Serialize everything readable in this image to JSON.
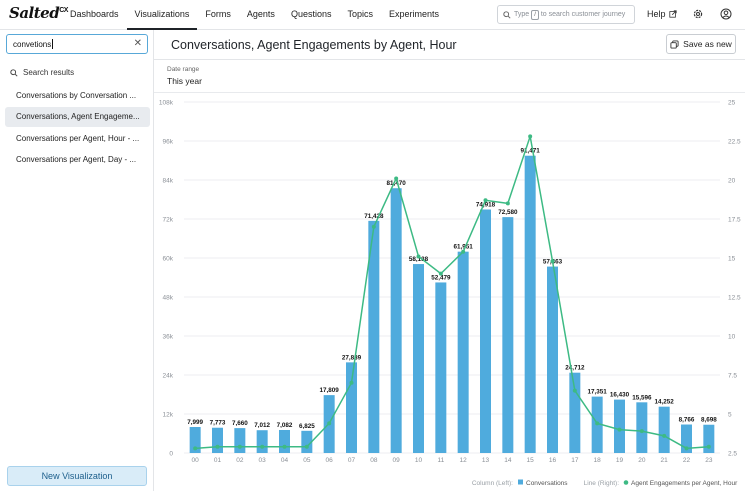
{
  "app": {
    "logo": "Salted",
    "logo_sup": "CX"
  },
  "nav": [
    "Dashboards",
    "Visualizations",
    "Forms",
    "Agents",
    "Questions",
    "Topics",
    "Experiments"
  ],
  "top_search": {
    "pre": "Type",
    "key": "/",
    "post": "to search customer journey"
  },
  "help_label": "Help",
  "sidebar": {
    "search_value": "convetions",
    "results_heading": "Search results",
    "results": [
      "Conversations by Conversation ...",
      "Conversations, Agent Engageme...",
      "Conversations per Agent, Hour - ...",
      "Conversations per Agent, Day - ..."
    ],
    "new_button": "New Visualization"
  },
  "main": {
    "title": "Conversations, Agent Engagements by Agent, Hour",
    "save_button": "Save as new",
    "date_range_label": "Date range",
    "date_range_value": "This year"
  },
  "colors": {
    "bar": "#4fabdd",
    "line": "#3dba84",
    "accent": "#58a8d8"
  },
  "chart_data": {
    "type": "bar",
    "categories": [
      "00",
      "01",
      "02",
      "03",
      "04",
      "05",
      "06",
      "07",
      "08",
      "09",
      "10",
      "11",
      "12",
      "13",
      "14",
      "15",
      "16",
      "17",
      "18",
      "19",
      "20",
      "21",
      "22",
      "23"
    ],
    "series": [
      {
        "name": "Conversations",
        "axis": "left",
        "type": "bar",
        "values": [
          7999,
          7773,
          7660,
          7012,
          7082,
          6825,
          17809,
          27889,
          71428,
          81470,
          58138,
          52479,
          61951,
          74918,
          72580,
          91471,
          57363,
          24712,
          17351,
          16430,
          15596,
          14252,
          8766,
          8698
        ],
        "labels": [
          "7,999",
          "7,773",
          "7,660",
          "7,012",
          "7,082",
          "6,825",
          "17,809",
          "27,889",
          "71,428",
          "81,470",
          "58,138",
          "52,479",
          "61,951",
          "74,918",
          "72,580",
          "91,471",
          "57,363",
          "24,712",
          "17,351",
          "16,430",
          "15,596",
          "14,252",
          "8,766",
          "8,698"
        ]
      },
      {
        "name": "Agent Engagements per Agent, Hour",
        "axis": "right",
        "type": "line",
        "values": [
          2.8,
          2.9,
          2.9,
          2.9,
          2.9,
          2.9,
          4.4,
          7.0,
          17.0,
          20.1,
          15.1,
          14.0,
          15.4,
          18.7,
          18.5,
          22.8,
          14.8,
          6.5,
          4.4,
          4.0,
          3.9,
          3.6,
          2.8,
          2.9
        ]
      }
    ],
    "left_ticks": [
      "0",
      "12k",
      "24k",
      "36k",
      "48k",
      "60k",
      "72k",
      "84k",
      "96k",
      "108k"
    ],
    "right_ticks": [
      "2.5",
      "5",
      "7.5",
      "10",
      "12.5",
      "15",
      "17.5",
      "20",
      "22.5",
      "25"
    ],
    "left_ylim": [
      0,
      108000
    ],
    "right_ylim": [
      2.5,
      25
    ],
    "legend": {
      "left_caption": "Column (Left):",
      "left_item": "Conversations",
      "right_caption": "Line (Right):",
      "right_item": "Agent Engagements per Agent, Hour"
    },
    "grid": true
  }
}
